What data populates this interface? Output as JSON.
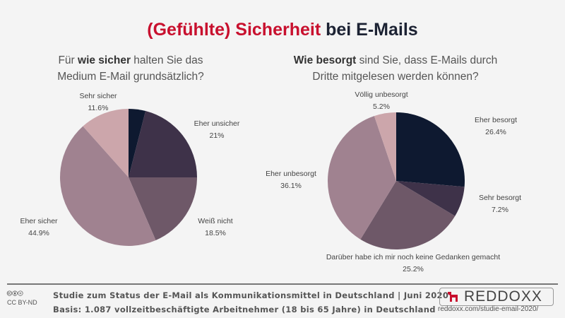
{
  "title": {
    "part_red": "(Gefühlte) Sicherheit",
    "part_dark": "bei E-Mails"
  },
  "colors": {
    "title_red": "#c8102e",
    "navy": "#0e1930",
    "dark_plum": "#3e3249",
    "plum": "#6e5868",
    "mauve": "#a08290",
    "pink": "#cca6ab"
  },
  "chart_data": [
    {
      "type": "pie",
      "question": {
        "pre": "Für ",
        "bold": "wie sicher",
        "post": " halten Sie das Medium E-Mail grundsätzlich?"
      },
      "start": "top",
      "direction": "clockwise",
      "slices": [
        {
          "label": "",
          "value": 4.0,
          "display": "",
          "color": "#0e1930"
        },
        {
          "label": "Eher unsicher",
          "value": 21,
          "display": "21%",
          "color": "#3e3249"
        },
        {
          "label": "Weiß nicht",
          "value": 18.5,
          "display": "18.5%",
          "color": "#6e5868"
        },
        {
          "label": "Eher sicher",
          "value": 44.9,
          "display": "44.9%",
          "color": "#a08290"
        },
        {
          "label": "Sehr sicher",
          "value": 11.6,
          "display": "11.6%",
          "color": "#cca6ab"
        }
      ]
    },
    {
      "type": "pie",
      "question": {
        "pre": "",
        "bold": "Wie besorgt",
        "post": " sind Sie, dass E-Mails durch Dritte mitgelesen werden können?"
      },
      "start": "top",
      "direction": "clockwise",
      "slices": [
        {
          "label": "Eher besorgt",
          "value": 26.4,
          "display": "26.4%",
          "color": "#0e1930"
        },
        {
          "label": "Sehr besorgt",
          "value": 7.2,
          "display": "7.2%",
          "color": "#3e3249"
        },
        {
          "label": "Darüber habe ich mir noch keine Gedanken gemacht",
          "value": 25.2,
          "display": "25.2%",
          "color": "#6e5868"
        },
        {
          "label": "Eher unbesorgt",
          "value": 36.1,
          "display": "36.1%",
          "color": "#a08290"
        },
        {
          "label": "Völlig unbesorgt",
          "value": 5.2,
          "display": "5.2%",
          "color": "#cca6ab"
        }
      ]
    }
  ],
  "footer": {
    "license_icons": "🅭🅯⊜",
    "license": "CC BY-ND",
    "line1": "Studie zum Status der E-Mail als Kommunikationsmittel in Deutschland | Juni 2020",
    "line2": "Basis: 1.087 vollzeitbeschäftigte Arbeitnehmer (18 bis 65 Jahre) in Deutschland",
    "brand": "REDDOXX",
    "url": "reddoxx.com/studie-email-2020/"
  }
}
